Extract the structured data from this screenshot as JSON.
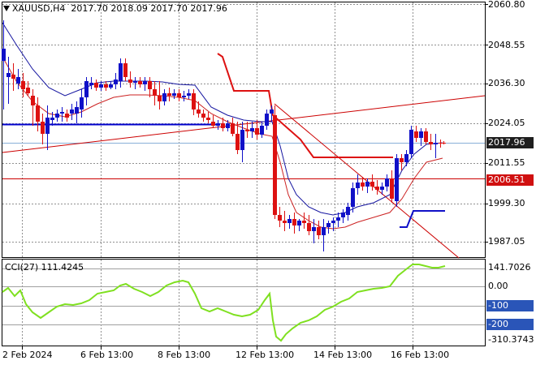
{
  "header": {
    "symbol": "XAUUSD,H4",
    "ohlc": "2017.70 2018.09 2017.70 2017.96"
  },
  "price_axis": {
    "ticks": [
      "2060.80",
      "2048.55",
      "2036.30",
      "2024.05",
      "2011.55",
      "1999.30",
      "1987.05"
    ],
    "current_price": "2017.96",
    "line_price": "2006.51"
  },
  "cci": {
    "title": "CCI(27) 111.4245",
    "axis_labels": [
      "141.7026",
      "0.00",
      "-100",
      "-200",
      "-310.3743"
    ]
  },
  "time_axis": {
    "labels": [
      "2 Feb 2024",
      "6 Feb 13:00",
      "8 Feb 13:00",
      "12 Feb 13:00",
      "14 Feb 13:00",
      "16 Feb 13:00"
    ]
  },
  "colors": {
    "bull": "#1010c8",
    "bear": "#dd1111",
    "grid": "#909090",
    "hline_blue": "#0000cc",
    "hline_red": "#cc0000",
    "cci_line": "#7fe020",
    "label_box": "#1e1e1e",
    "label_red": "#d01010",
    "label_blue": "#2a55b8"
  }
}
